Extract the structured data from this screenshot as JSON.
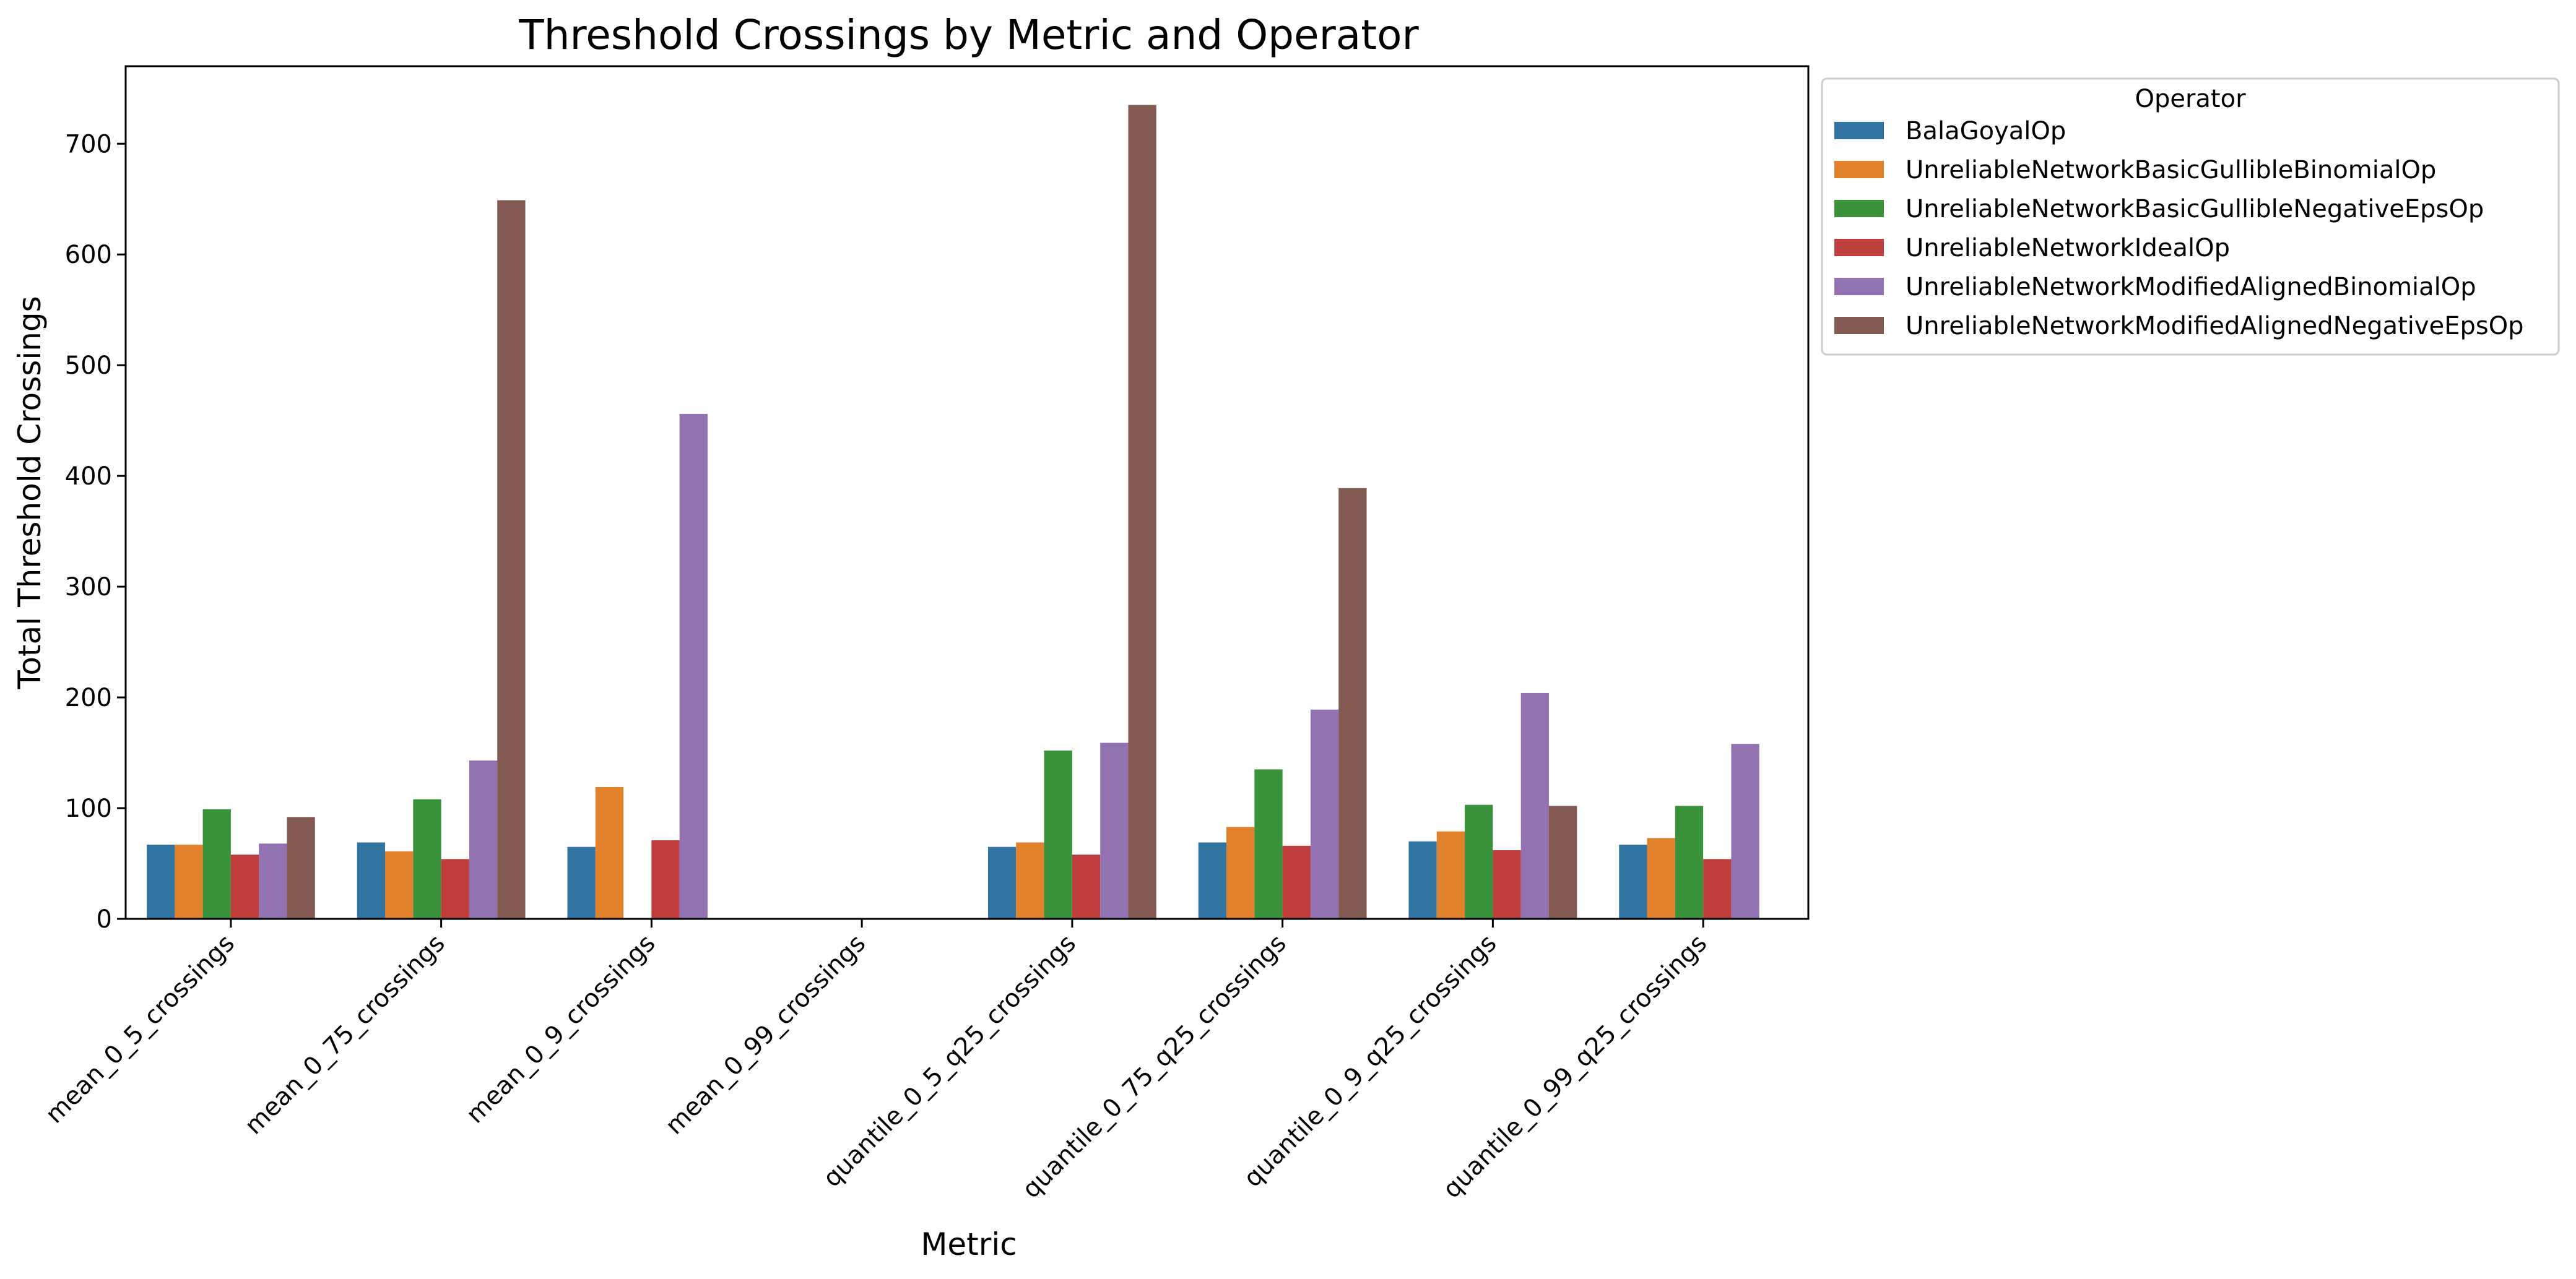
{
  "chart_data": {
    "type": "bar",
    "title": "Threshold Crossings by Metric and Operator",
    "xlabel": "Metric",
    "ylabel": "Total Threshold Crossings",
    "ylim": [
      0,
      770
    ],
    "yticks": [
      0,
      100,
      200,
      300,
      400,
      500,
      600,
      700
    ],
    "grid": false,
    "legend": {
      "title": "Operator",
      "placement": "outside-top-right"
    },
    "categories": [
      "mean_0_5_crossings",
      "mean_0_75_crossings",
      "mean_0_9_crossings",
      "mean_0_99_crossings",
      "quantile_0_5_q25_crossings",
      "quantile_0_75_q25_crossings",
      "quantile_0_9_q25_crossings",
      "quantile_0_99_q25_crossings"
    ],
    "series": [
      {
        "name": "BalaGoyalOp",
        "color": "#3274a1",
        "values": [
          67,
          69,
          65,
          0,
          65,
          69,
          70,
          67
        ]
      },
      {
        "name": "UnreliableNetworkBasicGullibleBinomialOp",
        "color": "#e1812c",
        "values": [
          67,
          61,
          119,
          0,
          69,
          83,
          79,
          73
        ]
      },
      {
        "name": "UnreliableNetworkBasicGullibleNegativeEpsOp",
        "color": "#3a923a",
        "values": [
          99,
          108,
          0,
          0,
          152,
          135,
          103,
          102
        ]
      },
      {
        "name": "UnreliableNetworkIdealOp",
        "color": "#c03d3e",
        "values": [
          58,
          54,
          71,
          0,
          58,
          66,
          62,
          54
        ]
      },
      {
        "name": "UnreliableNetworkModifiedAlignedBinomialOp",
        "color": "#9372b2",
        "values": [
          68,
          143,
          456,
          0,
          159,
          189,
          204,
          158
        ]
      },
      {
        "name": "UnreliableNetworkModifiedAlignedNegativeEpsOp",
        "color": "#845b53",
        "values": [
          92,
          649,
          0,
          0,
          735,
          389,
          102,
          0
        ]
      }
    ]
  }
}
